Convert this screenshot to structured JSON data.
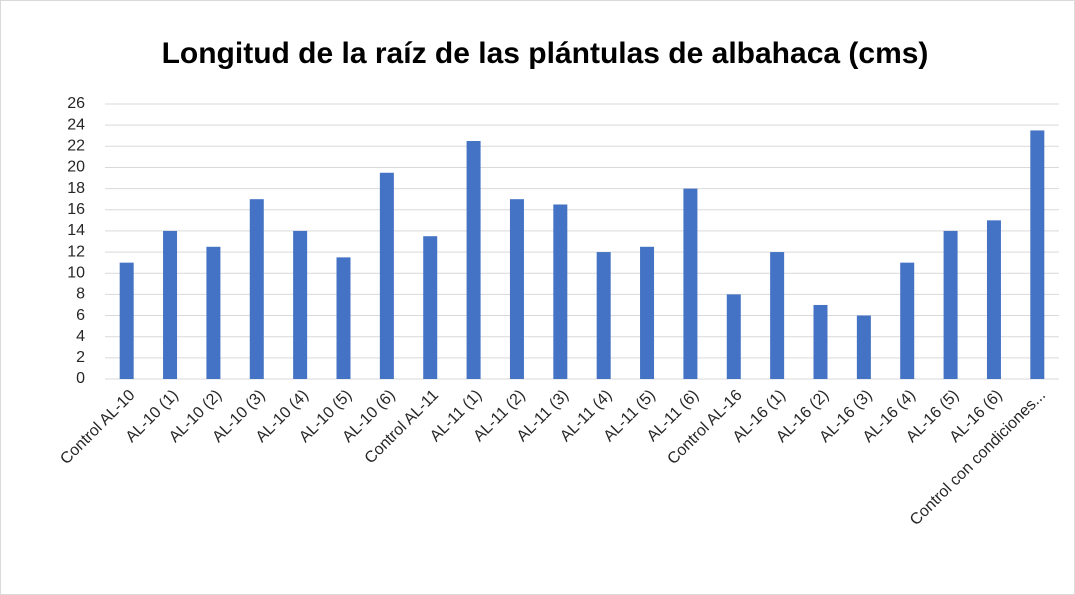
{
  "chart_data": {
    "type": "bar",
    "title": "Longitud de la raíz de las plántulas de albahaca (cms)",
    "categories": [
      "Control AL-10",
      "AL-10 (1)",
      "AL-10 (2)",
      "AL-10 (3)",
      "AL-10 (4)",
      "AL-10 (5)",
      "AL-10 (6)",
      "Control AL-11",
      "AL-11 (1)",
      "AL-11 (2)",
      "AL-11 (3)",
      "AL-11 (4)",
      "AL-11 (5)",
      "AL-11 (6)",
      "Control AL-16",
      "AL-16 (1)",
      "AL-16 (2)",
      "AL-16 (3)",
      "AL-16 (4)",
      "AL-16 (5)",
      "AL-16 (6)",
      "Control con condiciones..."
    ],
    "values": [
      11,
      14,
      12.5,
      17,
      14,
      11.5,
      19.5,
      13.5,
      22.5,
      17,
      16.5,
      12,
      12.5,
      18,
      8,
      12,
      7,
      6,
      11,
      14,
      15,
      23.5
    ],
    "color": "#4472c4",
    "ylim": [
      0,
      26
    ],
    "yticks": [
      0,
      2,
      4,
      6,
      8,
      10,
      12,
      14,
      16,
      18,
      20,
      22,
      24,
      26
    ],
    "grid": true
  }
}
